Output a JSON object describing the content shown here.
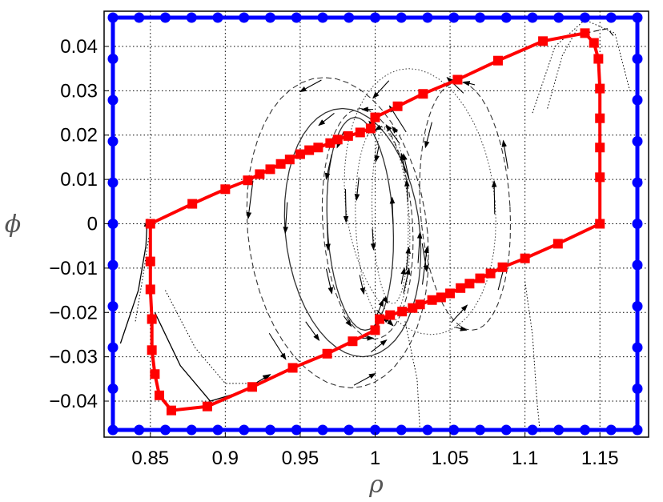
{
  "chart_data": {
    "type": "line",
    "title": "",
    "xlabel": "ρ",
    "ylabel": "ϕ",
    "xlim": [
      0.825,
      1.175
    ],
    "ylim": [
      -0.0465,
      0.0465
    ],
    "grid": true,
    "grid_style": "dotted",
    "x_ticks": [
      0.85,
      0.9,
      0.95,
      1.0,
      1.05,
      1.1,
      1.15
    ],
    "x_tick_labels": [
      "0.85",
      "0.9",
      "0.95",
      "1",
      "1.05",
      "1.1",
      "1.15"
    ],
    "y_ticks": [
      0.04,
      0.03,
      0.02,
      0.01,
      0.0,
      -0.01,
      -0.02,
      -0.03,
      -0.04
    ],
    "y_tick_labels": [
      "0.04",
      "0.03",
      "0.02",
      "0.01",
      "0",
      "−0.01",
      "−0.02",
      "−0.03",
      "−0.04"
    ],
    "colors": {
      "outer": "#0000ff",
      "inner": "#ff0000",
      "flow": "#000000"
    },
    "series": [
      {
        "id": "outer-boundary",
        "color": "#0000ff",
        "marker": "circle",
        "closed": true,
        "points": [
          [
            0.825,
            0.0465
          ],
          [
            0.8425,
            0.0465
          ],
          [
            0.86,
            0.0465
          ],
          [
            0.8775,
            0.0465
          ],
          [
            0.895,
            0.0465
          ],
          [
            0.9125,
            0.0465
          ],
          [
            0.93,
            0.0465
          ],
          [
            0.9475,
            0.0465
          ],
          [
            0.965,
            0.0465
          ],
          [
            0.9825,
            0.0465
          ],
          [
            1.0,
            0.0465
          ],
          [
            1.0175,
            0.0465
          ],
          [
            1.035,
            0.0465
          ],
          [
            1.0525,
            0.0465
          ],
          [
            1.07,
            0.0465
          ],
          [
            1.0875,
            0.0465
          ],
          [
            1.105,
            0.0465
          ],
          [
            1.1225,
            0.0465
          ],
          [
            1.14,
            0.0465
          ],
          [
            1.1575,
            0.0465
          ],
          [
            1.175,
            0.0465
          ],
          [
            1.175,
            0.0372
          ],
          [
            1.175,
            0.0279
          ],
          [
            1.175,
            0.0186
          ],
          [
            1.175,
            0.0093
          ],
          [
            1.175,
            0.0
          ],
          [
            1.175,
            -0.0093
          ],
          [
            1.175,
            -0.0186
          ],
          [
            1.175,
            -0.0279
          ],
          [
            1.175,
            -0.0372
          ],
          [
            1.175,
            -0.0465
          ],
          [
            1.1575,
            -0.0465
          ],
          [
            1.14,
            -0.0465
          ],
          [
            1.1225,
            -0.0465
          ],
          [
            1.105,
            -0.0465
          ],
          [
            1.0875,
            -0.0465
          ],
          [
            1.07,
            -0.0465
          ],
          [
            1.0525,
            -0.0465
          ],
          [
            1.035,
            -0.0465
          ],
          [
            1.0175,
            -0.0465
          ],
          [
            1.0,
            -0.0465
          ],
          [
            0.9825,
            -0.0465
          ],
          [
            0.965,
            -0.0465
          ],
          [
            0.9475,
            -0.0465
          ],
          [
            0.93,
            -0.0465
          ],
          [
            0.9125,
            -0.0465
          ],
          [
            0.895,
            -0.0465
          ],
          [
            0.8775,
            -0.0465
          ],
          [
            0.86,
            -0.0465
          ],
          [
            0.8425,
            -0.0465
          ],
          [
            0.825,
            -0.0465
          ],
          [
            0.825,
            -0.0372
          ],
          [
            0.825,
            -0.0279
          ],
          [
            0.825,
            -0.0186
          ],
          [
            0.825,
            -0.0093
          ],
          [
            0.825,
            0.0
          ],
          [
            0.825,
            0.0093
          ],
          [
            0.825,
            0.0186
          ],
          [
            0.825,
            0.0279
          ],
          [
            0.825,
            0.0372
          ]
        ]
      },
      {
        "id": "inner-boundary",
        "color": "#ff0000",
        "marker": "square",
        "closed": true,
        "points": [
          [
            0.85,
            0.0
          ],
          [
            0.878,
            0.0045
          ],
          [
            0.9,
            0.0078
          ],
          [
            0.915,
            0.0098
          ],
          [
            0.923,
            0.0112
          ],
          [
            0.93,
            0.0123
          ],
          [
            0.937,
            0.0135
          ],
          [
            0.943,
            0.0145
          ],
          [
            0.95,
            0.0157
          ],
          [
            0.956,
            0.0166
          ],
          [
            0.962,
            0.0172
          ],
          [
            0.97,
            0.0182
          ],
          [
            0.975,
            0.019
          ],
          [
            0.982,
            0.0198
          ],
          [
            0.99,
            0.0206
          ],
          [
            0.997,
            0.0215
          ],
          [
            1.0,
            0.024
          ],
          [
            1.015,
            0.0265
          ],
          [
            1.032,
            0.0293
          ],
          [
            1.055,
            0.0325
          ],
          [
            1.082,
            0.0368
          ],
          [
            1.112,
            0.0412
          ],
          [
            1.14,
            0.043
          ],
          [
            1.146,
            0.0408
          ],
          [
            1.149,
            0.0372
          ],
          [
            1.15,
            0.0305
          ],
          [
            1.15,
            0.0238
          ],
          [
            1.15,
            0.0172
          ],
          [
            1.15,
            0.0105
          ],
          [
            1.15,
            0.0
          ],
          [
            1.122,
            -0.0045
          ],
          [
            1.1,
            -0.0078
          ],
          [
            1.085,
            -0.0098
          ],
          [
            1.077,
            -0.0112
          ],
          [
            1.07,
            -0.0123
          ],
          [
            1.063,
            -0.0135
          ],
          [
            1.057,
            -0.0145
          ],
          [
            1.05,
            -0.0157
          ],
          [
            1.044,
            -0.0166
          ],
          [
            1.038,
            -0.0172
          ],
          [
            1.03,
            -0.0182
          ],
          [
            1.025,
            -0.019
          ],
          [
            1.018,
            -0.0198
          ],
          [
            1.01,
            -0.0206
          ],
          [
            1.003,
            -0.0215
          ],
          [
            1.0,
            -0.024
          ],
          [
            0.985,
            -0.0265
          ],
          [
            0.968,
            -0.0293
          ],
          [
            0.945,
            -0.0325
          ],
          [
            0.918,
            -0.0368
          ],
          [
            0.888,
            -0.0412
          ],
          [
            0.864,
            -0.0421
          ],
          [
            0.856,
            -0.0387
          ],
          [
            0.853,
            -0.0339
          ],
          [
            0.851,
            -0.0285
          ],
          [
            0.851,
            -0.0215
          ],
          [
            0.85,
            -0.0148
          ],
          [
            0.85,
            -0.0085
          ]
        ]
      }
    ],
    "flow_trajectories": {
      "style": "dashed arrows and dotted lines",
      "loops": [
        {
          "center": [
            0.99,
            0.0
          ],
          "rx": 0.022,
          "ry": 0.024,
          "style": "solid"
        },
        {
          "center": [
            0.995,
            0.0
          ],
          "rx": 0.03,
          "ry": 0.026,
          "style": "dashed"
        },
        {
          "center": [
            0.985,
            -0.002
          ],
          "rx": 0.045,
          "ry": 0.028,
          "style": "solid"
        },
        {
          "center": [
            1.01,
            0.002
          ],
          "rx": 0.012,
          "ry": 0.02,
          "style": "dotted"
        },
        {
          "center": [
            1.005,
            0.0
          ],
          "rx": 0.018,
          "ry": 0.022,
          "style": "dotted"
        },
        {
          "center": [
            1.03,
            0.005
          ],
          "rx": 0.05,
          "ry": 0.03,
          "style": "dotted"
        },
        {
          "center": [
            1.06,
            0.004
          ],
          "rx": 0.03,
          "ry": 0.028,
          "style": "dashed"
        },
        {
          "center": [
            0.975,
            -0.002
          ],
          "rx": 0.06,
          "ry": 0.035,
          "style": "dashed"
        }
      ],
      "strands": [
        {
          "points": [
            [
              0.83,
              -0.027
            ],
            [
              0.842,
              -0.015
            ],
            [
              0.847,
              -0.005
            ],
            [
              0.848,
              0.001
            ]
          ],
          "style": "solid"
        },
        {
          "points": [
            [
              0.84,
              -0.022
            ],
            [
              0.845,
              -0.012
            ],
            [
              0.849,
              -0.003
            ]
          ],
          "style": "dotted"
        },
        {
          "points": [
            [
              0.853,
              -0.02
            ],
            [
              0.87,
              -0.032
            ],
            [
              0.89,
              -0.04
            ],
            [
              0.91,
              -0.038
            ],
            [
              0.93,
              -0.034
            ]
          ],
          "style": "solid"
        },
        {
          "points": [
            [
              0.86,
              -0.015
            ],
            [
              0.88,
              -0.028
            ],
            [
              0.9,
              -0.036
            ],
            [
              0.925,
              -0.036
            ]
          ],
          "style": "dotted"
        },
        {
          "points": [
            [
              1.105,
              0.025
            ],
            [
              1.12,
              0.04
            ],
            [
              1.14,
              0.046
            ],
            [
              1.16,
              0.043
            ],
            [
              1.17,
              0.03
            ]
          ],
          "style": "dotted"
        },
        {
          "points": [
            [
              1.115,
              0.026
            ],
            [
              1.125,
              0.038
            ],
            [
              1.135,
              0.044
            ]
          ],
          "style": "dotted"
        },
        {
          "points": [
            [
              1.1,
              -0.013
            ],
            [
              1.105,
              -0.025
            ],
            [
              1.108,
              -0.04
            ],
            [
              1.11,
              -0.047
            ]
          ],
          "style": "dotted"
        },
        {
          "points": [
            [
              1.02,
              -0.022
            ],
            [
              1.028,
              -0.035
            ],
            [
              1.03,
              -0.047
            ]
          ],
          "style": "dotted"
        },
        {
          "points": [
            [
              1.14,
              0.043
            ],
            [
              1.155,
              0.044
            ],
            [
              1.16,
              0.042
            ]
          ],
          "style": "dashed"
        }
      ]
    }
  }
}
